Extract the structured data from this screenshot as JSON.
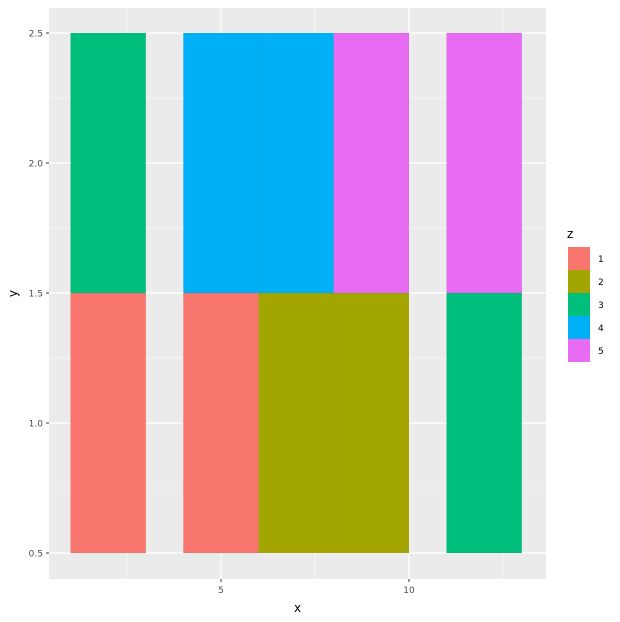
{
  "chart_data": {
    "type": "heatmap",
    "title": "",
    "xlabel": "x",
    "ylabel": "y",
    "xlim": [
      0.4,
      13.6
    ],
    "ylim": [
      0.4,
      2.6
    ],
    "x_ticks": [
      5,
      10
    ],
    "y_ticks": [
      "0.5",
      "1.0",
      "1.5",
      "2.0",
      "2.5"
    ],
    "legend": {
      "title": "z",
      "position": "right",
      "entries": [
        {
          "label": "1",
          "color": "#F8766D"
        },
        {
          "label": "2",
          "color": "#A3A500"
        },
        {
          "label": "3",
          "color": "#00BF7D"
        },
        {
          "label": "4",
          "color": "#00B0F6"
        },
        {
          "label": "5",
          "color": "#E76BF3"
        }
      ]
    },
    "tiles": [
      {
        "x": 2,
        "y": 1,
        "width": 2,
        "height": 1,
        "z": 1
      },
      {
        "x": 5,
        "y": 1,
        "width": 2,
        "height": 1,
        "z": 1
      },
      {
        "x": 7,
        "y": 1,
        "width": 2,
        "height": 1,
        "z": 2
      },
      {
        "x": 9,
        "y": 1,
        "width": 2,
        "height": 1,
        "z": 2
      },
      {
        "x": 12,
        "y": 1,
        "width": 2,
        "height": 1,
        "z": 3
      },
      {
        "x": 2,
        "y": 2,
        "width": 2,
        "height": 1,
        "z": 3
      },
      {
        "x": 5,
        "y": 2,
        "width": 2,
        "height": 1,
        "z": 4
      },
      {
        "x": 7,
        "y": 2,
        "width": 2,
        "height": 1,
        "z": 4
      },
      {
        "x": 9,
        "y": 2,
        "width": 2,
        "height": 1,
        "z": 5
      },
      {
        "x": 12,
        "y": 2,
        "width": 2,
        "height": 1,
        "z": 5
      }
    ],
    "grid": true
  }
}
